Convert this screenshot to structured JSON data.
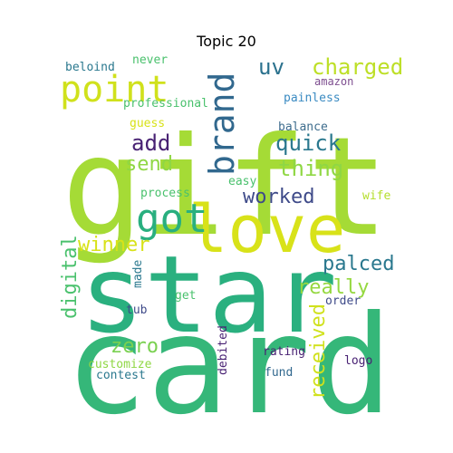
{
  "chart_data": {
    "type": "wordcloud",
    "title": "Topic 20",
    "words": [
      {
        "text": "card",
        "weight": 1.0,
        "color": "#35b779"
      },
      {
        "text": "gift",
        "weight": 0.98,
        "color": "#a5db36"
      },
      {
        "text": "star",
        "weight": 0.9,
        "color": "#2ab07f"
      },
      {
        "text": "love",
        "weight": 0.62,
        "color": "#d8e219"
      },
      {
        "text": "got",
        "weight": 0.32,
        "color": "#29af7f"
      },
      {
        "text": "point",
        "weight": 0.3,
        "color": "#d0e11c"
      },
      {
        "text": "brand",
        "weight": 0.3,
        "color": "#31688e"
      },
      {
        "text": "charged",
        "weight": 0.16,
        "color": "#bddf26"
      },
      {
        "text": "uv",
        "weight": 0.16,
        "color": "#2c728e"
      },
      {
        "text": "quick",
        "weight": 0.15,
        "color": "#2a788e"
      },
      {
        "text": "add",
        "weight": 0.15,
        "color": "#482173"
      },
      {
        "text": "send",
        "weight": 0.15,
        "color": "#8fd744"
      },
      {
        "text": "thing",
        "weight": 0.15,
        "color": "#8fd744"
      },
      {
        "text": "worked",
        "weight": 0.15,
        "color": "#3e4a89"
      },
      {
        "text": "winner",
        "weight": 0.15,
        "color": "#d8e219"
      },
      {
        "text": "digital",
        "weight": 0.15,
        "color": "#4ac16d"
      },
      {
        "text": "palced",
        "weight": 0.15,
        "color": "#2a788e"
      },
      {
        "text": "really",
        "weight": 0.15,
        "color": "#95d840"
      },
      {
        "text": "received",
        "weight": 0.15,
        "color": "#d0e11c"
      },
      {
        "text": "zero",
        "weight": 0.15,
        "color": "#7ad151"
      },
      {
        "text": "beloind",
        "weight": 0.08,
        "color": "#2a788e"
      },
      {
        "text": "never",
        "weight": 0.08,
        "color": "#4ac16d"
      },
      {
        "text": "amazon",
        "weight": 0.08,
        "color": "#7e4e90"
      },
      {
        "text": "professional",
        "weight": 0.08,
        "color": "#4ac16d"
      },
      {
        "text": "painless",
        "weight": 0.08,
        "color": "#3b8bc2"
      },
      {
        "text": "guess",
        "weight": 0.08,
        "color": "#d8e219"
      },
      {
        "text": "balance",
        "weight": 0.08,
        "color": "#3e6d8d"
      },
      {
        "text": "easy",
        "weight": 0.08,
        "color": "#4ac16d"
      },
      {
        "text": "process",
        "weight": 0.08,
        "color": "#4ac16d"
      },
      {
        "text": "wife",
        "weight": 0.08,
        "color": "#b5de2b"
      },
      {
        "text": "made",
        "weight": 0.08,
        "color": "#2a788e"
      },
      {
        "text": "get",
        "weight": 0.08,
        "color": "#4ac16d"
      },
      {
        "text": "order",
        "weight": 0.08,
        "color": "#3e4a89"
      },
      {
        "text": "tub",
        "weight": 0.08,
        "color": "#3e4a89"
      },
      {
        "text": "customize",
        "weight": 0.08,
        "color": "#8fd744"
      },
      {
        "text": "contest",
        "weight": 0.08,
        "color": "#2a788e"
      },
      {
        "text": "debited",
        "weight": 0.08,
        "color": "#482173"
      },
      {
        "text": "rating",
        "weight": 0.08,
        "color": "#482173"
      },
      {
        "text": "fund",
        "weight": 0.08,
        "color": "#31688e"
      },
      {
        "text": "logo",
        "weight": 0.08,
        "color": "#482173"
      }
    ]
  }
}
